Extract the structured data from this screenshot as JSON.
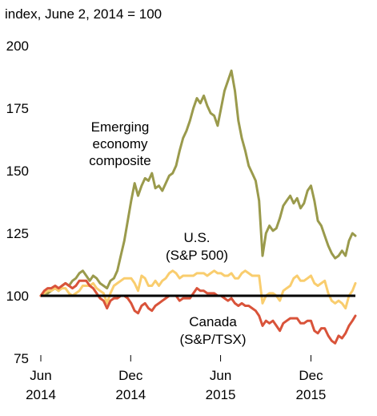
{
  "chart_data": {
    "type": "line",
    "title": "",
    "y_unit_label": "index, June 2, 2014 = 100",
    "xlabel": "",
    "ylabel": "",
    "ylim": [
      75,
      200
    ],
    "yticks": [
      75,
      100,
      125,
      150,
      175,
      200
    ],
    "x_range": [
      "2014-06-02",
      "2016-02-29"
    ],
    "x_ticks": [
      {
        "date": "2014-06-02",
        "line1": "Jun",
        "line2": "2014"
      },
      {
        "date": "2014-12-01",
        "line1": "Dec",
        "line2": "2014"
      },
      {
        "date": "2015-06-01",
        "line1": "Jun",
        "line2": "2015"
      },
      {
        "date": "2015-12-01",
        "line1": "Dec",
        "line2": "2015"
      }
    ],
    "grid": false,
    "baseline": 100,
    "colors": {
      "emerging": "#9a9a4c",
      "us": "#f9cd6e",
      "canada": "#d9533a",
      "baseline": "#000000"
    },
    "series": [
      {
        "key": "emerging",
        "name": "Emerging economy composite",
        "label_lines": [
          "Emerging",
          "economy",
          "composite"
        ],
        "points": [
          [
            "2014-06-02",
            100
          ],
          [
            "2014-06-09",
            101
          ],
          [
            "2014-06-16",
            101
          ],
          [
            "2014-06-23",
            102
          ],
          [
            "2014-07-01",
            103
          ],
          [
            "2014-07-08",
            102
          ],
          [
            "2014-07-15",
            104
          ],
          [
            "2014-07-22",
            105
          ],
          [
            "2014-07-29",
            104
          ],
          [
            "2014-08-05",
            106
          ],
          [
            "2014-08-12",
            107
          ],
          [
            "2014-08-19",
            109
          ],
          [
            "2014-08-26",
            110
          ],
          [
            "2014-09-02",
            108
          ],
          [
            "2014-09-09",
            106
          ],
          [
            "2014-09-16",
            108
          ],
          [
            "2014-09-23",
            107
          ],
          [
            "2014-09-30",
            105
          ],
          [
            "2014-10-07",
            104
          ],
          [
            "2014-10-14",
            103
          ],
          [
            "2014-10-21",
            106
          ],
          [
            "2014-10-28",
            107
          ],
          [
            "2014-11-04",
            110
          ],
          [
            "2014-11-11",
            116
          ],
          [
            "2014-11-18",
            122
          ],
          [
            "2014-11-25",
            130
          ],
          [
            "2014-12-02",
            138
          ],
          [
            "2014-12-09",
            145
          ],
          [
            "2014-12-16",
            140
          ],
          [
            "2014-12-23",
            144
          ],
          [
            "2014-12-30",
            147
          ],
          [
            "2015-01-06",
            146
          ],
          [
            "2015-01-13",
            149
          ],
          [
            "2015-01-20",
            143
          ],
          [
            "2015-01-27",
            144
          ],
          [
            "2015-02-03",
            142
          ],
          [
            "2015-02-10",
            145
          ],
          [
            "2015-02-17",
            148
          ],
          [
            "2015-02-24",
            149
          ],
          [
            "2015-03-03",
            152
          ],
          [
            "2015-03-10",
            158
          ],
          [
            "2015-03-17",
            163
          ],
          [
            "2015-03-24",
            166
          ],
          [
            "2015-03-31",
            170
          ],
          [
            "2015-04-07",
            175
          ],
          [
            "2015-04-14",
            179
          ],
          [
            "2015-04-21",
            177
          ],
          [
            "2015-04-28",
            180
          ],
          [
            "2015-05-05",
            176
          ],
          [
            "2015-05-12",
            173
          ],
          [
            "2015-05-19",
            172
          ],
          [
            "2015-05-26",
            168
          ],
          [
            "2015-06-02",
            175
          ],
          [
            "2015-06-09",
            182
          ],
          [
            "2015-06-16",
            186
          ],
          [
            "2015-06-23",
            190
          ],
          [
            "2015-06-30",
            182
          ],
          [
            "2015-07-07",
            170
          ],
          [
            "2015-07-14",
            163
          ],
          [
            "2015-07-21",
            158
          ],
          [
            "2015-07-28",
            152
          ],
          [
            "2015-08-04",
            149
          ],
          [
            "2015-08-11",
            146
          ],
          [
            "2015-08-18",
            138
          ],
          [
            "2015-08-25",
            116
          ],
          [
            "2015-09-01",
            125
          ],
          [
            "2015-09-08",
            128
          ],
          [
            "2015-09-15",
            126
          ],
          [
            "2015-09-22",
            127
          ],
          [
            "2015-09-29",
            131
          ],
          [
            "2015-10-06",
            136
          ],
          [
            "2015-10-13",
            138
          ],
          [
            "2015-10-20",
            140
          ],
          [
            "2015-10-27",
            137
          ],
          [
            "2015-11-03",
            139
          ],
          [
            "2015-11-10",
            135
          ],
          [
            "2015-11-17",
            137
          ],
          [
            "2015-11-24",
            142
          ],
          [
            "2015-12-01",
            144
          ],
          [
            "2015-12-08",
            138
          ],
          [
            "2015-12-15",
            130
          ],
          [
            "2015-12-22",
            128
          ],
          [
            "2015-12-29",
            124
          ],
          [
            "2016-01-05",
            120
          ],
          [
            "2016-01-12",
            117
          ],
          [
            "2016-01-19",
            115
          ],
          [
            "2016-01-26",
            116
          ],
          [
            "2016-02-02",
            118
          ],
          [
            "2016-02-09",
            116
          ],
          [
            "2016-02-16",
            122
          ],
          [
            "2016-02-23",
            125
          ],
          [
            "2016-02-29",
            124
          ]
        ]
      },
      {
        "key": "us",
        "name": "U.S. (S&P 500)",
        "label_lines": [
          "U.S.",
          "(S&P 500)"
        ],
        "points": [
          [
            "2014-06-02",
            100
          ],
          [
            "2014-06-09",
            101
          ],
          [
            "2014-06-16",
            102
          ],
          [
            "2014-06-23",
            102
          ],
          [
            "2014-07-01",
            103
          ],
          [
            "2014-07-08",
            102
          ],
          [
            "2014-07-15",
            103
          ],
          [
            "2014-07-22",
            103
          ],
          [
            "2014-07-29",
            101
          ],
          [
            "2014-08-05",
            100
          ],
          [
            "2014-08-12",
            101
          ],
          [
            "2014-08-19",
            102
          ],
          [
            "2014-08-26",
            104
          ],
          [
            "2014-09-02",
            104
          ],
          [
            "2014-09-09",
            104
          ],
          [
            "2014-09-16",
            105
          ],
          [
            "2014-09-23",
            103
          ],
          [
            "2014-09-30",
            102
          ],
          [
            "2014-10-07",
            101
          ],
          [
            "2014-10-14",
            97
          ],
          [
            "2014-10-21",
            101
          ],
          [
            "2014-10-28",
            104
          ],
          [
            "2014-11-04",
            105
          ],
          [
            "2014-11-11",
            106
          ],
          [
            "2014-11-18",
            107
          ],
          [
            "2014-11-25",
            107
          ],
          [
            "2014-12-02",
            107
          ],
          [
            "2014-12-09",
            105
          ],
          [
            "2014-12-16",
            102
          ],
          [
            "2014-12-23",
            108
          ],
          [
            "2014-12-30",
            107
          ],
          [
            "2015-01-06",
            104
          ],
          [
            "2015-01-13",
            104
          ],
          [
            "2015-01-20",
            106
          ],
          [
            "2015-01-27",
            104
          ],
          [
            "2015-02-03",
            106
          ],
          [
            "2015-02-10",
            107
          ],
          [
            "2015-02-17",
            109
          ],
          [
            "2015-02-24",
            110
          ],
          [
            "2015-03-03",
            109
          ],
          [
            "2015-03-10",
            107
          ],
          [
            "2015-03-17",
            108
          ],
          [
            "2015-03-24",
            108
          ],
          [
            "2015-03-31",
            108
          ],
          [
            "2015-04-07",
            108
          ],
          [
            "2015-04-14",
            109
          ],
          [
            "2015-04-21",
            109
          ],
          [
            "2015-04-28",
            109
          ],
          [
            "2015-05-05",
            108
          ],
          [
            "2015-05-12",
            109
          ],
          [
            "2015-05-19",
            110
          ],
          [
            "2015-05-26",
            109
          ],
          [
            "2015-06-02",
            109
          ],
          [
            "2015-06-09",
            108
          ],
          [
            "2015-06-16",
            108
          ],
          [
            "2015-06-23",
            109
          ],
          [
            "2015-06-30",
            107
          ],
          [
            "2015-07-07",
            107
          ],
          [
            "2015-07-14",
            109
          ],
          [
            "2015-07-21",
            110
          ],
          [
            "2015-07-28",
            109
          ],
          [
            "2015-08-04",
            108
          ],
          [
            "2015-08-11",
            108
          ],
          [
            "2015-08-18",
            108
          ],
          [
            "2015-08-25",
            97
          ],
          [
            "2015-09-01",
            100
          ],
          [
            "2015-09-08",
            101
          ],
          [
            "2015-09-15",
            101
          ],
          [
            "2015-09-22",
            100
          ],
          [
            "2015-09-29",
            98
          ],
          [
            "2015-10-06",
            102
          ],
          [
            "2015-10-13",
            103
          ],
          [
            "2015-10-20",
            104
          ],
          [
            "2015-10-27",
            107
          ],
          [
            "2015-11-03",
            108
          ],
          [
            "2015-11-10",
            106
          ],
          [
            "2015-11-17",
            106
          ],
          [
            "2015-11-24",
            107
          ],
          [
            "2015-12-01",
            108
          ],
          [
            "2015-12-08",
            105
          ],
          [
            "2015-12-15",
            104
          ],
          [
            "2015-12-22",
            105
          ],
          [
            "2015-12-29",
            106
          ],
          [
            "2016-01-05",
            101
          ],
          [
            "2016-01-12",
            98
          ],
          [
            "2016-01-19",
            97
          ],
          [
            "2016-01-26",
            98
          ],
          [
            "2016-02-02",
            97
          ],
          [
            "2016-02-09",
            95
          ],
          [
            "2016-02-16",
            100
          ],
          [
            "2016-02-23",
            102
          ],
          [
            "2016-02-29",
            105
          ]
        ]
      },
      {
        "key": "canada",
        "name": "Canada (S&P/TSX)",
        "label_lines": [
          "Canada",
          "(S&P/TSX)"
        ],
        "points": [
          [
            "2014-06-02",
            100
          ],
          [
            "2014-06-09",
            102
          ],
          [
            "2014-06-16",
            103
          ],
          [
            "2014-06-23",
            103
          ],
          [
            "2014-07-01",
            104
          ],
          [
            "2014-07-08",
            103
          ],
          [
            "2014-07-15",
            104
          ],
          [
            "2014-07-22",
            105
          ],
          [
            "2014-07-29",
            104
          ],
          [
            "2014-08-05",
            103
          ],
          [
            "2014-08-12",
            104
          ],
          [
            "2014-08-19",
            106
          ],
          [
            "2014-08-26",
            106
          ],
          [
            "2014-09-02",
            106
          ],
          [
            "2014-09-09",
            104
          ],
          [
            "2014-09-16",
            103
          ],
          [
            "2014-09-23",
            101
          ],
          [
            "2014-09-30",
            99
          ],
          [
            "2014-10-07",
            98
          ],
          [
            "2014-10-14",
            95
          ],
          [
            "2014-10-21",
            98
          ],
          [
            "2014-10-28",
            99
          ],
          [
            "2014-11-04",
            99
          ],
          [
            "2014-11-11",
            100
          ],
          [
            "2014-11-18",
            100
          ],
          [
            "2014-11-25",
            99
          ],
          [
            "2014-12-02",
            97
          ],
          [
            "2014-12-09",
            94
          ],
          [
            "2014-12-16",
            93
          ],
          [
            "2014-12-23",
            96
          ],
          [
            "2014-12-30",
            97
          ],
          [
            "2015-01-06",
            95
          ],
          [
            "2015-01-13",
            94
          ],
          [
            "2015-01-20",
            96
          ],
          [
            "2015-01-27",
            97
          ],
          [
            "2015-02-03",
            98
          ],
          [
            "2015-02-10",
            99
          ],
          [
            "2015-02-17",
            100
          ],
          [
            "2015-02-24",
            100
          ],
          [
            "2015-03-03",
            100
          ],
          [
            "2015-03-10",
            98
          ],
          [
            "2015-03-17",
            99
          ],
          [
            "2015-03-24",
            99
          ],
          [
            "2015-03-31",
            99
          ],
          [
            "2015-04-07",
            101
          ],
          [
            "2015-04-14",
            103
          ],
          [
            "2015-04-21",
            102
          ],
          [
            "2015-04-28",
            102
          ],
          [
            "2015-05-05",
            101
          ],
          [
            "2015-05-12",
            101
          ],
          [
            "2015-05-19",
            101
          ],
          [
            "2015-05-26",
            100
          ],
          [
            "2015-06-02",
            100
          ],
          [
            "2015-06-09",
            99
          ],
          [
            "2015-06-16",
            98
          ],
          [
            "2015-06-23",
            99
          ],
          [
            "2015-06-30",
            97
          ],
          [
            "2015-07-07",
            96
          ],
          [
            "2015-07-14",
            97
          ],
          [
            "2015-07-21",
            96
          ],
          [
            "2015-07-28",
            96
          ],
          [
            "2015-08-04",
            95
          ],
          [
            "2015-08-11",
            94
          ],
          [
            "2015-08-18",
            92
          ],
          [
            "2015-08-25",
            88
          ],
          [
            "2015-09-01",
            90
          ],
          [
            "2015-09-08",
            89
          ],
          [
            "2015-09-15",
            90
          ],
          [
            "2015-09-22",
            88
          ],
          [
            "2015-09-29",
            86
          ],
          [
            "2015-10-06",
            89
          ],
          [
            "2015-10-13",
            90
          ],
          [
            "2015-10-20",
            91
          ],
          [
            "2015-10-27",
            91
          ],
          [
            "2015-11-03",
            91
          ],
          [
            "2015-11-10",
            89
          ],
          [
            "2015-11-17",
            89
          ],
          [
            "2015-11-24",
            90
          ],
          [
            "2015-12-01",
            90
          ],
          [
            "2015-12-08",
            86
          ],
          [
            "2015-12-15",
            85
          ],
          [
            "2015-12-22",
            87
          ],
          [
            "2015-12-29",
            87
          ],
          [
            "2016-01-05",
            84
          ],
          [
            "2016-01-12",
            82
          ],
          [
            "2016-01-19",
            81
          ],
          [
            "2016-01-26",
            84
          ],
          [
            "2016-02-02",
            83
          ],
          [
            "2016-02-09",
            85
          ],
          [
            "2016-02-16",
            88
          ],
          [
            "2016-02-23",
            90
          ],
          [
            "2016-02-29",
            92
          ]
        ]
      }
    ]
  }
}
